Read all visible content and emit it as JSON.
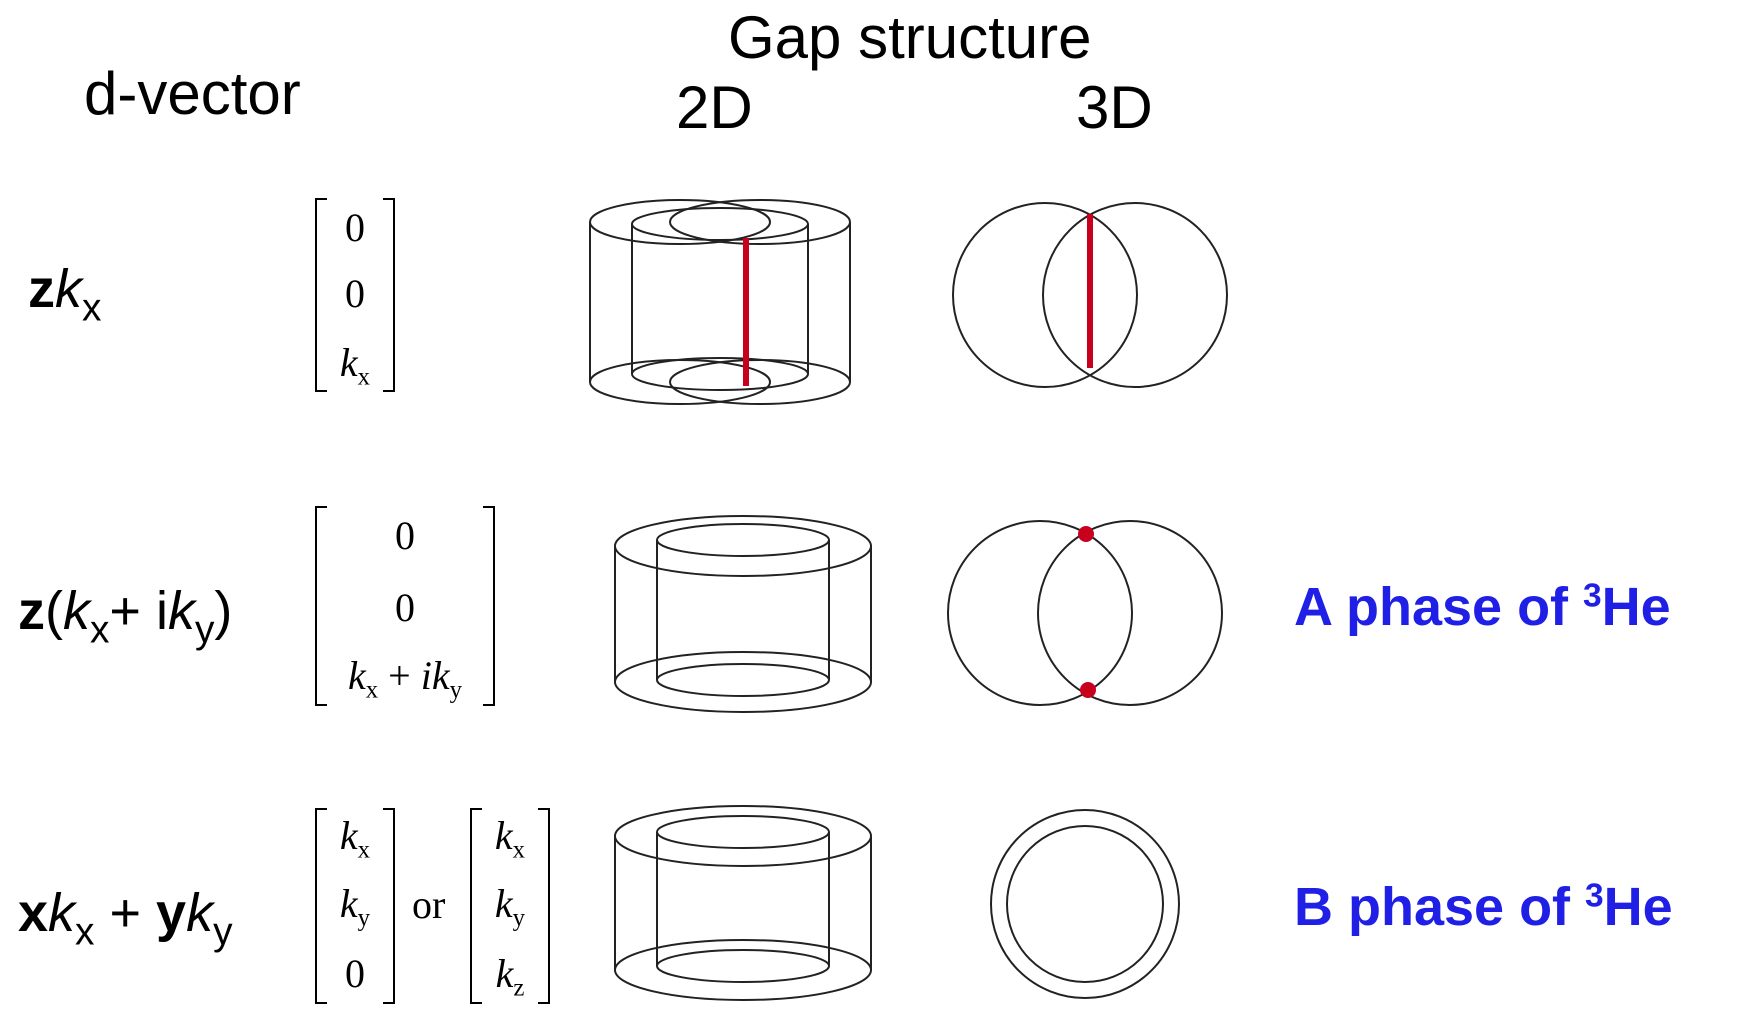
{
  "header": {
    "gap_structure": "Gap structure",
    "col_2d": "2D",
    "col_3d": "3D",
    "d_vector": "d-vector"
  },
  "rows": [
    {
      "label": {
        "v1": "z",
        "k1": "k",
        "s1": "x"
      },
      "matrix": [
        [
          "0"
        ],
        [
          "0"
        ],
        [
          "k",
          "x"
        ]
      ],
      "gap_2d": "two-lobe cylinder with red node line",
      "gap_3d": "two intersecting circles with red node line"
    },
    {
      "label": {
        "v1": "z",
        "p1": "(",
        "k1": "k",
        "s1": "x",
        "plus": "+ i",
        "k2": "k",
        "s2": "y",
        "p2": ")"
      },
      "matrix": [
        [
          "0"
        ],
        [
          "0"
        ],
        [
          "k",
          "x",
          " + ",
          "ik",
          "y"
        ]
      ],
      "gap_2d": "nested cylinders",
      "gap_3d": "two intersecting circles with red point nodes",
      "phase": {
        "text": "A phase of ",
        "sup": "3",
        "tail": "He"
      }
    },
    {
      "label": {
        "v1": "x",
        "k1": "k",
        "s1": "x",
        "plus": " + ",
        "v2": "y",
        "k2": "k",
        "s2": "y"
      },
      "matrix_a": [
        [
          "k",
          "x"
        ],
        [
          "k",
          "y"
        ],
        [
          "0"
        ]
      ],
      "or": "or",
      "matrix_b": [
        [
          "k",
          "x"
        ],
        [
          "k",
          "y"
        ],
        [
          "k",
          "z"
        ]
      ],
      "gap_2d": "nested cylinders",
      "gap_3d": "concentric circles",
      "phase": {
        "text": "B phase of ",
        "sup": "3",
        "tail": "He"
      }
    }
  ],
  "colors": {
    "node_red": "#c8001e",
    "phase_blue": "#1f1fe6",
    "line": "#222222"
  }
}
